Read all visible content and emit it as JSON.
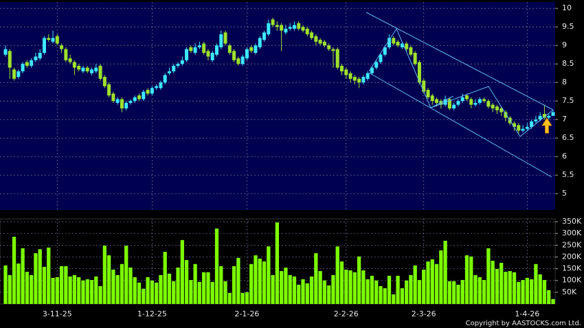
{
  "chart_data": {
    "type": "candlestick",
    "categories": [
      null,
      null,
      null,
      null,
      null,
      null,
      null,
      null,
      null,
      null,
      null,
      null,
      "3-11-25",
      null,
      null,
      null,
      null,
      null,
      null,
      null,
      null,
      null,
      null,
      null,
      null,
      null,
      null,
      null,
      null,
      null,
      null,
      null,
      null,
      null,
      "1-12-25",
      null,
      null,
      null,
      null,
      null,
      null,
      null,
      null,
      null,
      null,
      null,
      null,
      null,
      null,
      null,
      null,
      null,
      null,
      null,
      null,
      null,
      "2-1-26",
      null,
      null,
      null,
      null,
      null,
      null,
      null,
      null,
      null,
      null,
      null,
      null,
      null,
      null,
      null,
      null,
      null,
      null,
      null,
      null,
      null,
      null,
      "2-2-26",
      null,
      null,
      null,
      null,
      null,
      null,
      null,
      null,
      null,
      null,
      null,
      null,
      null,
      null,
      null,
      null,
      null,
      "2-3-26",
      null,
      null,
      null,
      null,
      null,
      null,
      null,
      null,
      null,
      null,
      null,
      null,
      null,
      null,
      null,
      null,
      null,
      null,
      null,
      null,
      null,
      null,
      null,
      "1-4-26",
      null,
      null,
      null,
      null,
      null,
      null
    ],
    "open": [
      8.75,
      8.85,
      8.35,
      8.15,
      8.3,
      8.55,
      8.45,
      8.6,
      8.65,
      8.8,
      9.2,
      9.1,
      9.25,
      9.0,
      8.9,
      8.65,
      8.55,
      8.45,
      8.3,
      8.4,
      8.25,
      8.3,
      8.45,
      8.15,
      7.95,
      7.7,
      7.45,
      7.55,
      7.3,
      7.45,
      7.5,
      7.65,
      7.55,
      7.8,
      7.7,
      7.85,
      7.85,
      8.0,
      8.25,
      8.3,
      8.45,
      8.5,
      8.6,
      8.95,
      8.8,
      8.95,
      9.05,
      8.85,
      8.6,
      8.75,
      8.95,
      9.35,
      9.0,
      8.85,
      8.65,
      8.5,
      8.65,
      8.95,
      8.8,
      8.95,
      9.15,
      9.3,
      9.7,
      9.55,
      9.55,
      9.35,
      9.45,
      9.45,
      9.6,
      9.5,
      9.45,
      9.35,
      9.25,
      9.15,
      9.1,
      9.0,
      8.9,
      8.9,
      8.45,
      8.35,
      8.25,
      8.15,
      8.1,
      8.0,
      8.1,
      8.25,
      8.4,
      8.55,
      8.75,
      8.95,
      9.2,
      9.1,
      8.95,
      9.05,
      8.95,
      8.8,
      8.55,
      8.05,
      7.8,
      7.65,
      7.55,
      7.5,
      7.4,
      7.55,
      7.3,
      7.4,
      7.5,
      7.65,
      7.55,
      7.4,
      7.45,
      7.55,
      7.5,
      7.4,
      7.35,
      7.3,
      7.2,
      7.05,
      6.9,
      6.85,
      6.7,
      6.75,
      6.8,
      6.95,
      7.0,
      7.15,
      7.05,
      7.1
    ],
    "high": [
      9.0,
      8.9,
      8.4,
      8.35,
      8.55,
      8.6,
      8.65,
      8.8,
      8.9,
      9.25,
      9.3,
      9.4,
      9.3,
      9.05,
      8.95,
      8.75,
      8.6,
      8.5,
      8.45,
      8.45,
      8.4,
      8.5,
      8.5,
      8.2,
      8.0,
      7.75,
      7.6,
      7.6,
      7.5,
      7.55,
      7.65,
      7.7,
      7.8,
      7.85,
      7.9,
      7.95,
      8.05,
      8.25,
      8.4,
      8.5,
      8.55,
      8.7,
      8.95,
      9.0,
      9.05,
      9.1,
      9.1,
      8.9,
      8.85,
      9.05,
      9.4,
      9.4,
      9.05,
      8.9,
      8.7,
      8.75,
      8.95,
      9.0,
      9.05,
      9.25,
      9.4,
      9.7,
      9.75,
      9.65,
      9.6,
      9.55,
      9.6,
      9.65,
      9.65,
      9.55,
      9.5,
      9.4,
      9.3,
      9.2,
      9.15,
      9.05,
      8.95,
      8.95,
      8.5,
      8.4,
      8.3,
      8.2,
      8.15,
      8.2,
      8.3,
      8.45,
      8.6,
      8.8,
      9.0,
      9.3,
      9.25,
      9.15,
      9.1,
      9.1,
      9.0,
      8.85,
      8.6,
      8.1,
      7.85,
      7.7,
      7.6,
      7.55,
      7.65,
      7.6,
      7.45,
      7.55,
      7.7,
      7.7,
      7.6,
      7.55,
      7.6,
      7.6,
      7.55,
      7.45,
      7.4,
      7.35,
      7.25,
      7.1,
      6.95,
      6.9,
      6.85,
      6.9,
      7.0,
      7.1,
      7.2,
      7.4,
      7.15,
      7.25
    ],
    "low": [
      8.7,
      8.1,
      8.05,
      8.1,
      8.25,
      8.4,
      8.4,
      8.55,
      8.6,
      8.75,
      9.1,
      9.05,
      9.0,
      8.8,
      8.55,
      8.5,
      8.2,
      8.3,
      8.25,
      8.25,
      8.2,
      8.25,
      8.05,
      7.85,
      7.6,
      7.45,
      7.4,
      7.2,
      7.25,
      7.4,
      7.45,
      7.5,
      7.5,
      7.65,
      7.65,
      7.8,
      7.8,
      7.95,
      8.2,
      8.25,
      8.4,
      8.45,
      8.55,
      8.8,
      8.75,
      8.9,
      8.75,
      8.6,
      8.55,
      8.7,
      8.9,
      9.0,
      8.75,
      8.55,
      8.45,
      8.45,
      8.6,
      8.8,
      8.75,
      8.9,
      9.1,
      9.25,
      9.5,
      9.4,
      8.85,
      9.3,
      9.4,
      9.4,
      9.4,
      9.35,
      9.25,
      9.15,
      9.0,
      9.0,
      8.95,
      8.85,
      8.4,
      8.35,
      8.2,
      8.1,
      8.0,
      7.95,
      7.85,
      7.95,
      8.05,
      8.2,
      8.35,
      8.5,
      8.7,
      8.9,
      9.0,
      8.95,
      8.9,
      8.85,
      8.7,
      8.45,
      7.95,
      7.7,
      7.55,
      7.4,
      7.35,
      7.3,
      7.35,
      7.25,
      7.25,
      7.35,
      7.45,
      7.5,
      7.3,
      7.35,
      7.4,
      7.45,
      7.3,
      7.2,
      7.15,
      7.1,
      6.95,
      6.85,
      6.7,
      6.6,
      6.65,
      6.7,
      6.75,
      6.9,
      6.95,
      7.0,
      7.0,
      7.1
    ],
    "close": [
      8.9,
      8.4,
      8.1,
      8.3,
      8.5,
      8.45,
      8.6,
      8.7,
      8.8,
      9.2,
      9.15,
      9.2,
      9.05,
      8.9,
      8.6,
      8.55,
      8.4,
      8.35,
      8.4,
      8.3,
      8.35,
      8.4,
      8.1,
      7.9,
      7.65,
      7.5,
      7.55,
      7.3,
      7.45,
      7.5,
      7.6,
      7.55,
      7.75,
      7.7,
      7.85,
      7.9,
      8.0,
      8.2,
      8.3,
      8.45,
      8.5,
      8.6,
      8.9,
      8.85,
      8.95,
      9.0,
      8.8,
      8.7,
      8.8,
      9.0,
      9.3,
      9.05,
      8.8,
      8.6,
      8.5,
      8.7,
      8.9,
      8.85,
      9.0,
      9.2,
      9.35,
      9.6,
      9.55,
      9.5,
      9.4,
      9.45,
      9.5,
      9.55,
      9.45,
      9.4,
      9.3,
      9.2,
      9.1,
      9.05,
      9.0,
      8.9,
      8.85,
      8.4,
      8.3,
      8.2,
      8.1,
      8.05,
      8.0,
      8.15,
      8.25,
      8.4,
      8.55,
      8.75,
      8.95,
      9.2,
      9.05,
      9.0,
      9.05,
      8.9,
      8.75,
      8.5,
      8.0,
      7.75,
      7.6,
      7.5,
      7.45,
      7.4,
      7.55,
      7.3,
      7.4,
      7.5,
      7.6,
      7.55,
      7.4,
      7.45,
      7.55,
      7.5,
      7.35,
      7.3,
      7.25,
      7.2,
      7.05,
      6.9,
      6.8,
      6.7,
      6.75,
      6.8,
      6.95,
      7.0,
      7.1,
      7.05,
      7.1,
      7.2
    ],
    "up_color": "#3ce8ff",
    "down_color": "#9ee22a",
    "ylim": [
      4.56,
      10.17
    ],
    "yticks": [
      5,
      5.5,
      6,
      6.5,
      7,
      7.5,
      8,
      8.5,
      9,
      9.5,
      10
    ],
    "grid": true,
    "volume": {
      "type": "bar",
      "color": "#7cfc00",
      "values": [
        164000,
        123000,
        286000,
        172000,
        237000,
        137000,
        123000,
        216000,
        233000,
        158000,
        240000,
        111000,
        114000,
        161000,
        161000,
        117000,
        123000,
        114000,
        100000,
        105000,
        102000,
        117000,
        76000,
        248000,
        207000,
        146000,
        123000,
        170000,
        248000,
        155000,
        114000,
        91000,
        65000,
        114000,
        100000,
        91000,
        123000,
        222000,
        129000,
        97000,
        155000,
        272000,
        187000,
        102000,
        170000,
        94000,
        135000,
        135000,
        94000,
        321000,
        161000,
        97000,
        47000,
        161000,
        196000,
        47000,
        50000,
        170000,
        207000,
        193000,
        181000,
        245000,
        123000,
        347000,
        140000,
        155000,
        123000,
        117000,
        82000,
        105000,
        88000,
        117000,
        216000,
        140000,
        100000,
        79000,
        123000,
        245000,
        181000,
        146000,
        143000,
        135000,
        202000,
        143000,
        105000,
        120000,
        100000,
        76000,
        67000,
        120000,
        41000,
        120000,
        67000,
        100000,
        123000,
        164000,
        102000,
        146000,
        181000,
        190000,
        170000,
        228000,
        269000,
        97000,
        97000,
        82000,
        102000,
        207000,
        202000,
        123000,
        114000,
        102000,
        237000,
        184000,
        149000,
        175000,
        137000,
        140000,
        135000,
        94000,
        102000,
        111000,
        105000,
        170000,
        126000,
        102000,
        59000,
        21000
      ],
      "ylim": [
        0,
        362000
      ],
      "yticks": [
        {
          "value": 50000,
          "label": "50K"
        },
        {
          "value": 100000,
          "label": "100K"
        },
        {
          "value": 150000,
          "label": "150K"
        },
        {
          "value": 200000,
          "label": "200K"
        },
        {
          "value": 250000,
          "label": "250K"
        },
        {
          "value": 300000,
          "label": "300K"
        },
        {
          "value": 350000,
          "label": "350K"
        }
      ]
    }
  },
  "footer": "Copyright by AASTOCKS.com Ltd."
}
